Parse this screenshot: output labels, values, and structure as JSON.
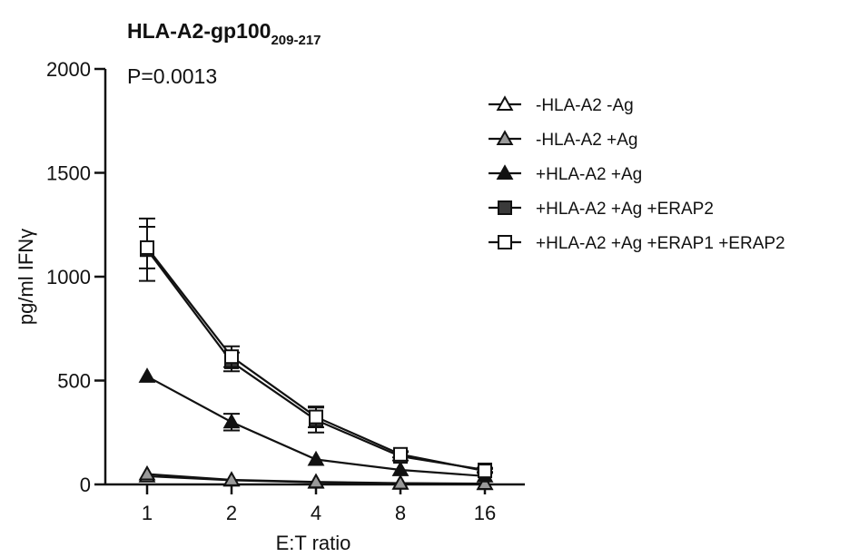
{
  "chart_data": {
    "type": "line",
    "title": "HLA-A2-gp100",
    "title_subscript": "209-217",
    "annotation": "P=0.0013",
    "xlabel": "E:T ratio",
    "ylabel": "pg/ml IFNγ",
    "x": [
      1,
      2,
      4,
      8,
      16
    ],
    "x_tick_labels": [
      "1",
      "2",
      "4",
      "8",
      "16"
    ],
    "x_scale": "log2",
    "ylim": [
      0,
      2000
    ],
    "y_ticks": [
      0,
      500,
      1000,
      1500,
      2000
    ],
    "y_tick_labels": [
      "0",
      "500",
      "1000",
      "1500",
      "2000"
    ],
    "grid": false,
    "legend_position": "right",
    "series": [
      {
        "name": "-HLA-A2 -Ag",
        "marker": "triangle",
        "fill": "#ffffff",
        "values": [
          40,
          20,
          10,
          5,
          3
        ],
        "errors": [
          0,
          0,
          0,
          0,
          0
        ]
      },
      {
        "name": "-HLA-A2 +Ag",
        "marker": "triangle",
        "fill": "#9a9a9a",
        "values": [
          50,
          22,
          12,
          6,
          4
        ],
        "errors": [
          0,
          0,
          0,
          0,
          0
        ]
      },
      {
        "name": "+HLA-A2 +Ag",
        "marker": "triangle",
        "fill": "#111111",
        "values": [
          520,
          300,
          120,
          70,
          40
        ],
        "errors": [
          0,
          40,
          0,
          0,
          0
        ]
      },
      {
        "name": "+HLA-A2 +Ag +ERAP2",
        "marker": "square",
        "fill": "#3a3a3a",
        "values": [
          1130,
          590,
          310,
          135,
          70
        ],
        "errors": [
          150,
          45,
          60,
          20,
          10
        ]
      },
      {
        "name": "+HLA-A2 +Ag +ERAP1 +ERAP2",
        "marker": "square",
        "fill": "#ffffff",
        "values": [
          1140,
          615,
          325,
          145,
          65
        ],
        "errors": [
          100,
          50,
          50,
          15,
          10
        ]
      }
    ]
  }
}
